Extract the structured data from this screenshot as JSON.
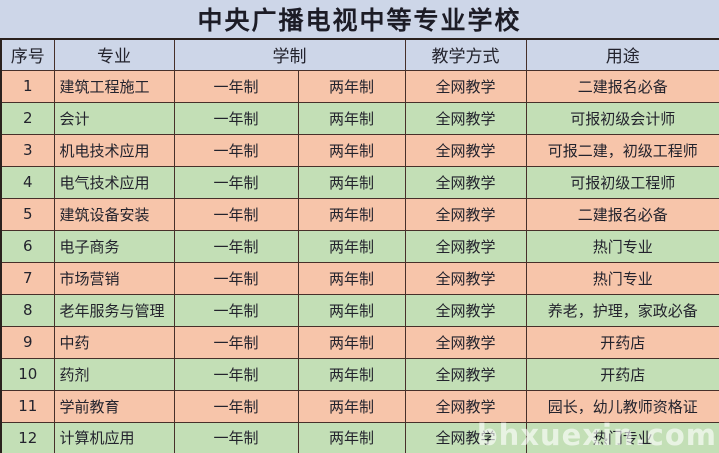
{
  "title": "中央广播电视中等专业学校",
  "table": {
    "headers": {
      "no": "序号",
      "major": "专业",
      "duration": "学制",
      "teaching": "教学方式",
      "use": "用途"
    },
    "rows": [
      {
        "no": "1",
        "major": "建筑工程施工",
        "duration1": "一年制",
        "duration2": "两年制",
        "teaching": "全网教学",
        "use": "二建报名必备"
      },
      {
        "no": "2",
        "major": "会计",
        "duration1": "一年制",
        "duration2": "两年制",
        "teaching": "全网教学",
        "use": "可报初级会计师"
      },
      {
        "no": "3",
        "major": "机电技术应用",
        "duration1": "一年制",
        "duration2": "两年制",
        "teaching": "全网教学",
        "use": "可报二建，初级工程师"
      },
      {
        "no": "4",
        "major": "电气技术应用",
        "duration1": "一年制",
        "duration2": "两年制",
        "teaching": "全网教学",
        "use": "可报初级工程师"
      },
      {
        "no": "5",
        "major": "建筑设备安装",
        "duration1": "一年制",
        "duration2": "两年制",
        "teaching": "全网教学",
        "use": "二建报名必备"
      },
      {
        "no": "6",
        "major": "电子商务",
        "duration1": "一年制",
        "duration2": "两年制",
        "teaching": "全网教学",
        "use": "热门专业"
      },
      {
        "no": "7",
        "major": "市场营销",
        "duration1": "一年制",
        "duration2": "两年制",
        "teaching": "全网教学",
        "use": "热门专业"
      },
      {
        "no": "8",
        "major": "老年服务与管理",
        "duration1": "一年制",
        "duration2": "两年制",
        "teaching": "全网教学",
        "use": "养老，护理，家政必备"
      },
      {
        "no": "9",
        "major": "中药",
        "duration1": "一年制",
        "duration2": "两年制",
        "teaching": "全网教学",
        "use": "开药店"
      },
      {
        "no": "10",
        "major": "药剂",
        "duration1": "一年制",
        "duration2": "两年制",
        "teaching": "全网教学",
        "use": "开药店"
      },
      {
        "no": "11",
        "major": "学前教育",
        "duration1": "一年制",
        "duration2": "两年制",
        "teaching": "全网教学",
        "use": "园长，幼儿教师资格证"
      },
      {
        "no": "12",
        "major": "计算机应用",
        "duration1": "一年制",
        "duration2": "两年制",
        "teaching": "全网教学",
        "use": "热门专业"
      }
    ]
  },
  "watermark": "bhxuexin.com",
  "colors": {
    "header_bg": "#cdd6e8",
    "row_odd_bg": "#f7c5aa",
    "row_even_bg": "#c3dfb6",
    "grid_line": "#47302a"
  }
}
